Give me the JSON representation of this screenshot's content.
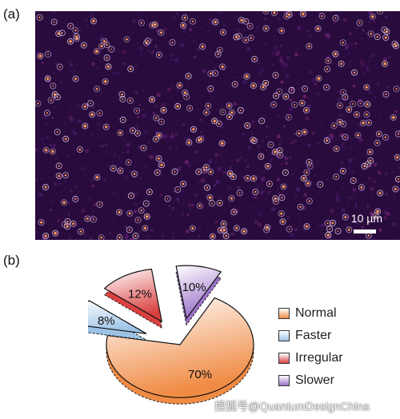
{
  "panel_a": {
    "label": "(a)",
    "scale_bar": "10 µm"
  },
  "panel_b": {
    "label": "(b)"
  },
  "chart_data": {
    "type": "pie",
    "exploded": true,
    "slices": [
      {
        "name": "Normal",
        "value": 70,
        "label": "70%",
        "color": "#f08b44"
      },
      {
        "name": "Faster",
        "value": 8,
        "label": "8%",
        "color": "#9cc3e6"
      },
      {
        "name": "Irregular",
        "value": 12,
        "label": "12%",
        "color": "#d9413f"
      },
      {
        "name": "Slower",
        "value": 10,
        "label": "10%",
        "color": "#9b72c9"
      }
    ],
    "legend_placement": "right"
  },
  "watermark": "搜狐号@QuantumDesignChina"
}
